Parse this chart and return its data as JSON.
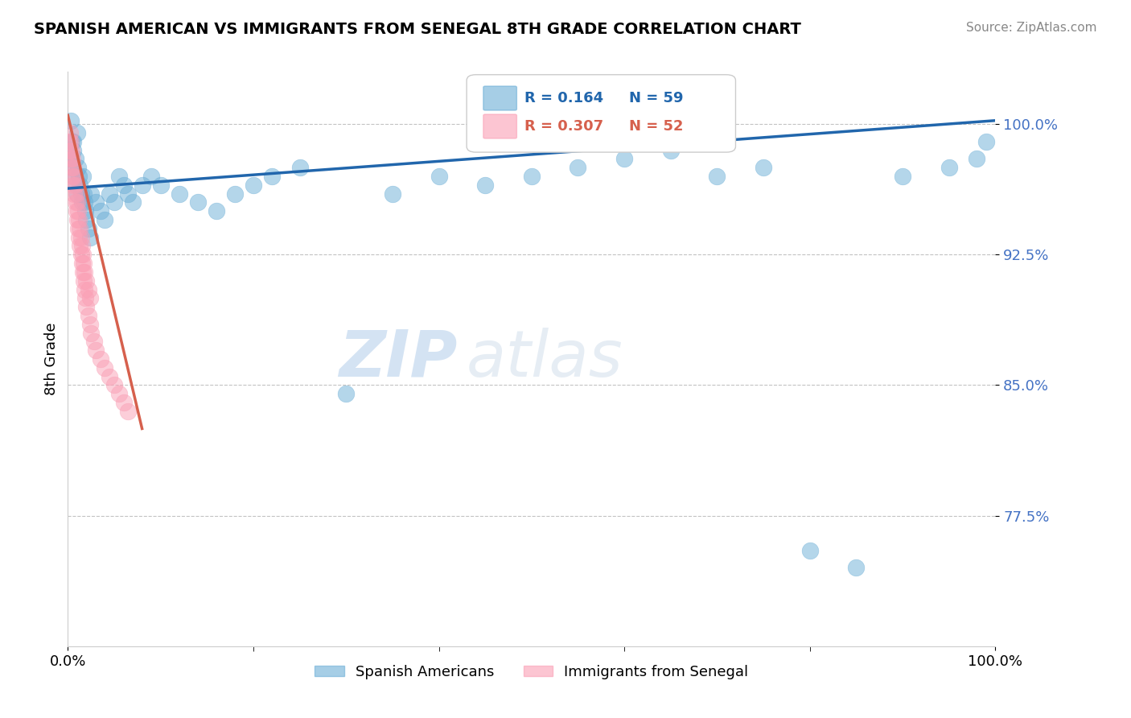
{
  "title": "SPANISH AMERICAN VS IMMIGRANTS FROM SENEGAL 8TH GRADE CORRELATION CHART",
  "source": "Source: ZipAtlas.com",
  "ylabel": "8th Grade",
  "xlim": [
    0.0,
    1.0
  ],
  "ylim": [
    0.7,
    1.03
  ],
  "yticks": [
    0.775,
    0.85,
    0.925,
    1.0
  ],
  "ytick_labels": [
    "77.5%",
    "85.0%",
    "92.5%",
    "100.0%"
  ],
  "xtick_labels": [
    "0.0%",
    "100.0%"
  ],
  "legend_R_blue": "R = 0.164",
  "legend_N_blue": "N = 59",
  "legend_R_pink": "R = 0.307",
  "legend_N_pink": "N = 52",
  "legend_label_blue": "Spanish Americans",
  "legend_label_pink": "Immigrants from Senegal",
  "blue_color": "#6baed6",
  "pink_color": "#fa9fb5",
  "trend_blue_color": "#2166ac",
  "trend_pink_color": "#d6604d",
  "watermark_zip": "ZIP",
  "watermark_atlas": "atlas",
  "blue_scatter_x": [
    0.002,
    0.004,
    0.005,
    0.006,
    0.007,
    0.008,
    0.009,
    0.01,
    0.011,
    0.012,
    0.013,
    0.014,
    0.015,
    0.016,
    0.017,
    0.018,
    0.019,
    0.02,
    0.022,
    0.024,
    0.025,
    0.03,
    0.035,
    0.04,
    0.045,
    0.05,
    0.055,
    0.06,
    0.065,
    0.07,
    0.08,
    0.09,
    0.1,
    0.12,
    0.14,
    0.16,
    0.18,
    0.2,
    0.22,
    0.25,
    0.3,
    0.35,
    0.4,
    0.45,
    0.5,
    0.55,
    0.6,
    0.65,
    0.7,
    0.75,
    0.8,
    0.85,
    0.9,
    0.95,
    0.98,
    0.99,
    0.003,
    0.006,
    0.01
  ],
  "blue_scatter_y": [
    0.98,
    0.99,
    0.975,
    0.985,
    0.97,
    0.98,
    0.965,
    0.96,
    0.975,
    0.97,
    0.965,
    0.96,
    0.955,
    0.97,
    0.96,
    0.955,
    0.95,
    0.945,
    0.94,
    0.935,
    0.96,
    0.955,
    0.95,
    0.945,
    0.96,
    0.955,
    0.97,
    0.965,
    0.96,
    0.955,
    0.965,
    0.97,
    0.965,
    0.96,
    0.955,
    0.95,
    0.96,
    0.965,
    0.97,
    0.975,
    0.845,
    0.96,
    0.97,
    0.965,
    0.97,
    0.975,
    0.98,
    0.985,
    0.97,
    0.975,
    0.755,
    0.745,
    0.97,
    0.975,
    0.98,
    0.99,
    1.002,
    0.99,
    0.995
  ],
  "pink_scatter_x": [
    0.001,
    0.002,
    0.003,
    0.004,
    0.005,
    0.006,
    0.007,
    0.008,
    0.009,
    0.01,
    0.011,
    0.012,
    0.013,
    0.014,
    0.015,
    0.016,
    0.017,
    0.018,
    0.019,
    0.02,
    0.022,
    0.024,
    0.025,
    0.028,
    0.03,
    0.035,
    0.04,
    0.045,
    0.05,
    0.055,
    0.06,
    0.065,
    0.002,
    0.003,
    0.004,
    0.005,
    0.006,
    0.007,
    0.008,
    0.009,
    0.01,
    0.011,
    0.012,
    0.013,
    0.014,
    0.015,
    0.016,
    0.017,
    0.018,
    0.02,
    0.022,
    0.024
  ],
  "pink_scatter_y": [
    0.99,
    0.985,
    0.98,
    0.975,
    0.97,
    0.965,
    0.96,
    0.955,
    0.95,
    0.945,
    0.94,
    0.935,
    0.93,
    0.925,
    0.92,
    0.915,
    0.91,
    0.905,
    0.9,
    0.895,
    0.89,
    0.885,
    0.88,
    0.875,
    0.87,
    0.865,
    0.86,
    0.855,
    0.85,
    0.845,
    0.84,
    0.835,
    0.995,
    0.99,
    0.985,
    0.98,
    0.975,
    0.97,
    0.965,
    0.96,
    0.955,
    0.95,
    0.945,
    0.94,
    0.935,
    0.93,
    0.925,
    0.92,
    0.915,
    0.91,
    0.905,
    0.9
  ],
  "blue_trend_x": [
    0.0,
    1.0
  ],
  "blue_trend_y": [
    0.963,
    1.002
  ],
  "pink_trend_x": [
    0.0,
    0.08
  ],
  "pink_trend_y": [
    1.005,
    0.825
  ]
}
